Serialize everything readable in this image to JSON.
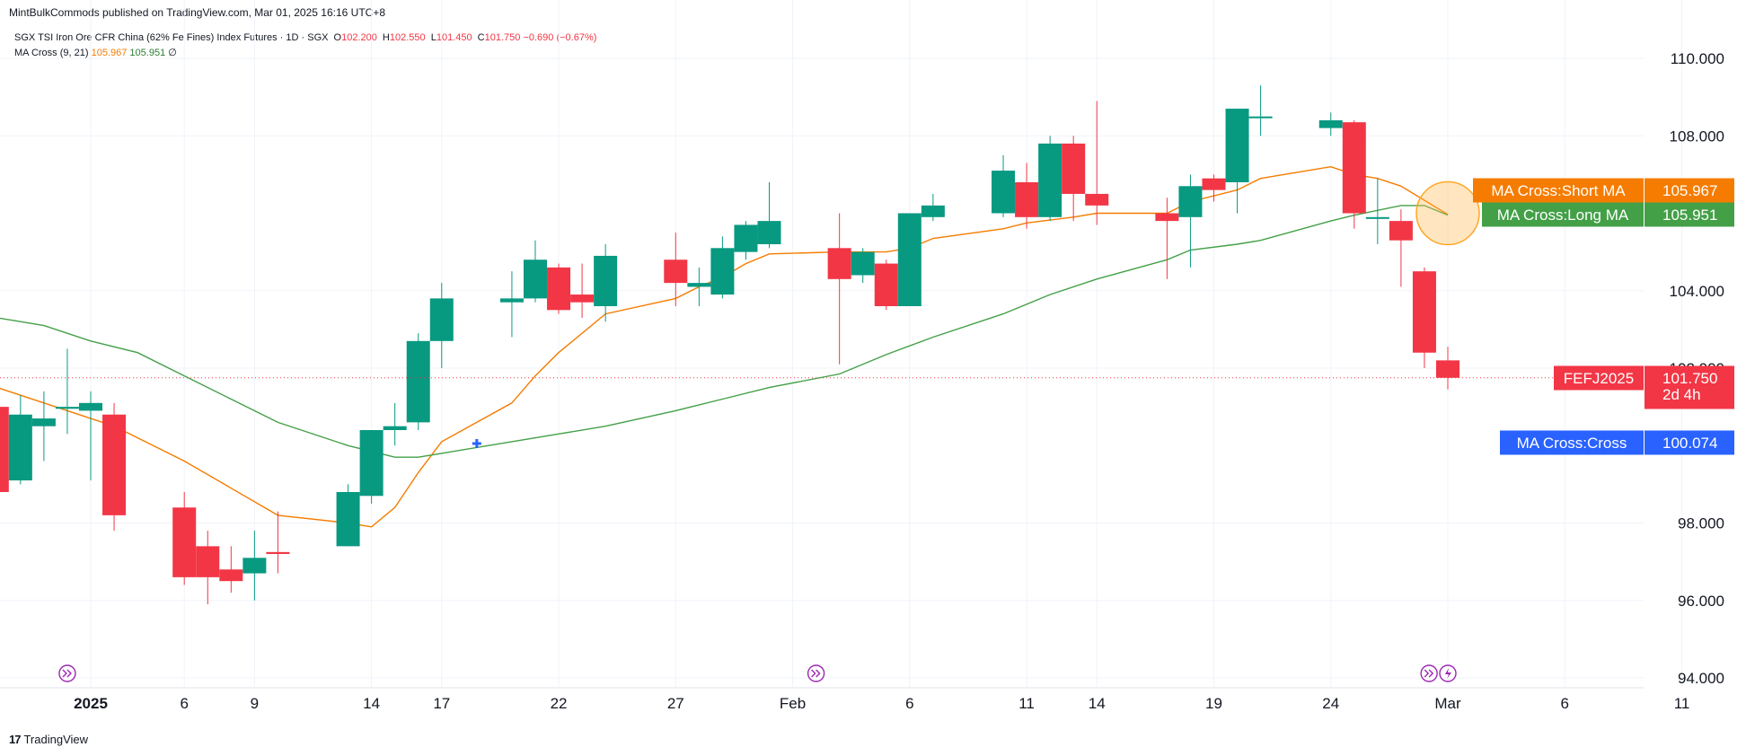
{
  "publisher_line": "MintBulkCommods published on TradingView.com, Mar 01, 2025 16:16 UTC+8",
  "legend": {
    "symbol": "SGX TSI Iron Ore CFR China (62% Fe Fines) Index Futures · 1D · SGX",
    "o_key": "O",
    "o_val": "102.200",
    "h_key": "H",
    "h_val": "102.550",
    "l_key": "L",
    "l_val": "101.450",
    "c_key": "C",
    "c_val": "101.750",
    "change": "−0.690 (−0.67%)",
    "indicator": "MA Cross (9, 21)",
    "short_val": "105.967",
    "long_val": "105.951",
    "empty_mark": "∅"
  },
  "footer": {
    "brand_mark": "17",
    "brand": "TradingView"
  },
  "colors": {
    "up": "#089981",
    "down": "#f23645",
    "short_ma": "#f57c00",
    "long_ma": "#43a047",
    "cross": "#2962ff",
    "grid": "#f0f3fa",
    "text": "#131722"
  },
  "chart_data": {
    "type": "candlestick",
    "symbol": "FEFJ2025",
    "ylim": [
      93.5,
      111.2
    ],
    "y_ticks": [
      "110.000",
      "108.000",
      "104.000",
      "102.000",
      "98.000",
      "96.000",
      "94.000"
    ],
    "y_tick_values": [
      110,
      108,
      104,
      102,
      98,
      96,
      94
    ],
    "x_ticks": [
      {
        "label": "2025",
        "day": 2,
        "bold": true
      },
      {
        "label": "6",
        "day": 6
      },
      {
        "label": "9",
        "day": 9
      },
      {
        "label": "14",
        "day": 14
      },
      {
        "label": "17",
        "day": 17
      },
      {
        "label": "22",
        "day": 22
      },
      {
        "label": "27",
        "day": 27
      },
      {
        "label": "Feb",
        "day": 32
      },
      {
        "label": "6",
        "day": 37
      },
      {
        "label": "11",
        "day": 42
      },
      {
        "label": "14",
        "day": 45
      },
      {
        "label": "19",
        "day": 50
      },
      {
        "label": "24",
        "day": 55
      },
      {
        "label": "Mar",
        "day": 60
      },
      {
        "label": "6",
        "day": 65
      },
      {
        "label": "11",
        "day": 70
      }
    ],
    "day_axis": "day 1 = Jan 1, 2025",
    "candles": [
      {
        "day": -2,
        "o": 101.0,
        "h": 101.3,
        "l": 98.6,
        "c": 98.8
      },
      {
        "day": -1,
        "o": 99.1,
        "h": 101.3,
        "l": 99.0,
        "c": 100.8
      },
      {
        "day": 0,
        "o": 100.5,
        "h": 101.4,
        "l": 99.6,
        "c": 100.7
      },
      {
        "day": 1,
        "o": 100.95,
        "h": 102.5,
        "l": 100.3,
        "c": 101.0
      },
      {
        "day": 2,
        "o": 100.9,
        "h": 101.4,
        "l": 99.1,
        "c": 101.1
      },
      {
        "day": 3,
        "o": 100.8,
        "h": 101.1,
        "l": 97.8,
        "c": 98.2
      },
      {
        "day": 6,
        "o": 98.4,
        "h": 98.8,
        "l": 96.4,
        "c": 96.6
      },
      {
        "day": 7,
        "o": 97.4,
        "h": 97.8,
        "l": 95.9,
        "c": 96.6
      },
      {
        "day": 8,
        "o": 96.8,
        "h": 97.4,
        "l": 96.2,
        "c": 96.5
      },
      {
        "day": 9,
        "o": 96.7,
        "h": 97.8,
        "l": 96.0,
        "c": 97.1
      },
      {
        "day": 10,
        "o": 97.25,
        "h": 98.3,
        "l": 96.7,
        "c": 97.2
      },
      {
        "day": 13,
        "o": 97.4,
        "h": 99.0,
        "l": 97.4,
        "c": 98.8
      },
      {
        "day": 14,
        "o": 98.7,
        "h": 100.4,
        "l": 98.5,
        "c": 100.4
      },
      {
        "day": 15,
        "o": 100.4,
        "h": 101.1,
        "l": 100.0,
        "c": 100.5
      },
      {
        "day": 16,
        "o": 100.6,
        "h": 102.9,
        "l": 100.4,
        "c": 102.7
      },
      {
        "day": 17,
        "o": 102.7,
        "h": 104.2,
        "l": 102.0,
        "c": 103.8
      },
      {
        "day": 20,
        "o": 103.7,
        "h": 104.5,
        "l": 102.8,
        "c": 103.8
      },
      {
        "day": 21,
        "o": 103.8,
        "h": 105.3,
        "l": 103.7,
        "c": 104.8
      },
      {
        "day": 22,
        "o": 104.6,
        "h": 104.7,
        "l": 103.4,
        "c": 103.5
      },
      {
        "day": 23,
        "o": 103.9,
        "h": 104.7,
        "l": 103.3,
        "c": 103.7
      },
      {
        "day": 24,
        "o": 103.6,
        "h": 105.2,
        "l": 103.2,
        "c": 104.9
      },
      {
        "day": 27,
        "o": 104.8,
        "h": 105.5,
        "l": 103.6,
        "c": 104.2
      },
      {
        "day": 28,
        "o": 104.1,
        "h": 104.6,
        "l": 103.6,
        "c": 104.2
      },
      {
        "day": 29,
        "o": 103.9,
        "h": 105.4,
        "l": 103.8,
        "c": 105.1
      },
      {
        "day": 30,
        "o": 105.0,
        "h": 105.8,
        "l": 104.8,
        "c": 105.7
      },
      {
        "day": 31,
        "o": 105.2,
        "h": 106.8,
        "l": 105.1,
        "c": 105.8
      },
      {
        "day": 34,
        "o": 105.1,
        "h": 106.0,
        "l": 102.1,
        "c": 104.3
      },
      {
        "day": 35,
        "o": 104.4,
        "h": 105.1,
        "l": 104.2,
        "c": 105.0
      },
      {
        "day": 36,
        "o": 104.7,
        "h": 104.8,
        "l": 103.5,
        "c": 103.6
      },
      {
        "day": 37,
        "o": 103.6,
        "h": 106.0,
        "l": 103.6,
        "c": 106.0
      },
      {
        "day": 38,
        "o": 105.9,
        "h": 106.5,
        "l": 105.8,
        "c": 106.2
      },
      {
        "day": 41,
        "o": 106.0,
        "h": 107.5,
        "l": 105.9,
        "c": 107.1
      },
      {
        "day": 42,
        "o": 106.8,
        "h": 107.3,
        "l": 105.6,
        "c": 105.9
      },
      {
        "day": 43,
        "o": 105.9,
        "h": 108.0,
        "l": 105.8,
        "c": 107.8
      },
      {
        "day": 44,
        "o": 107.8,
        "h": 108.0,
        "l": 105.8,
        "c": 106.5
      },
      {
        "day": 45,
        "o": 106.5,
        "h": 108.9,
        "l": 105.7,
        "c": 106.2
      },
      {
        "day": 48,
        "o": 106.0,
        "h": 106.4,
        "l": 104.3,
        "c": 105.8
      },
      {
        "day": 49,
        "o": 105.9,
        "h": 107.0,
        "l": 104.6,
        "c": 106.7
      },
      {
        "day": 50,
        "o": 106.9,
        "h": 107.0,
        "l": 106.3,
        "c": 106.6
      },
      {
        "day": 51,
        "o": 106.8,
        "h": 108.7,
        "l": 106.0,
        "c": 108.7
      },
      {
        "day": 52,
        "o": 108.5,
        "h": 109.3,
        "l": 108.0,
        "c": 108.5
      },
      {
        "day": 55,
        "o": 108.2,
        "h": 108.6,
        "l": 108.0,
        "c": 108.4
      },
      {
        "day": 56,
        "o": 108.35,
        "h": 108.4,
        "l": 105.6,
        "c": 106.0
      },
      {
        "day": 57,
        "o": 105.9,
        "h": 106.9,
        "l": 105.2,
        "c": 105.9
      },
      {
        "day": 58,
        "o": 105.8,
        "h": 106.1,
        "l": 104.1,
        "c": 105.3
      },
      {
        "day": 59,
        "o": 104.5,
        "h": 104.6,
        "l": 102.0,
        "c": 102.4
      },
      {
        "day": 60,
        "o": 102.2,
        "h": 102.55,
        "l": 101.45,
        "c": 101.75
      }
    ],
    "series": [
      {
        "name": "MA Cross:Short MA",
        "color": "#f57c00",
        "points": [
          [
            -2,
            101.5
          ],
          [
            0,
            101.1
          ],
          [
            3,
            100.5
          ],
          [
            6,
            99.6
          ],
          [
            8,
            98.9
          ],
          [
            10,
            98.2
          ],
          [
            13,
            98.0
          ],
          [
            14,
            97.9
          ],
          [
            15,
            98.4
          ],
          [
            16,
            99.3
          ],
          [
            17,
            100.1
          ],
          [
            20,
            101.1
          ],
          [
            21,
            101.8
          ],
          [
            22,
            102.4
          ],
          [
            23,
            102.9
          ],
          [
            24,
            103.4
          ],
          [
            27,
            103.8
          ],
          [
            28,
            104.1
          ],
          [
            29,
            104.35
          ],
          [
            30,
            104.7
          ],
          [
            31,
            104.95
          ],
          [
            34,
            105.0
          ],
          [
            36,
            105.0
          ],
          [
            37,
            105.1
          ],
          [
            38,
            105.35
          ],
          [
            41,
            105.6
          ],
          [
            42,
            105.75
          ],
          [
            44,
            105.9
          ],
          [
            45,
            106.0
          ],
          [
            48,
            106.0
          ],
          [
            49,
            106.3
          ],
          [
            51,
            106.6
          ],
          [
            52,
            106.9
          ],
          [
            55,
            107.2
          ],
          [
            56,
            107.0
          ],
          [
            57,
            106.9
          ],
          [
            58,
            106.7
          ],
          [
            60,
            105.967
          ]
        ]
      },
      {
        "name": "MA Cross:Long MA",
        "color": "#43a047",
        "points": [
          [
            -2,
            103.3
          ],
          [
            0,
            103.1
          ],
          [
            2,
            102.7
          ],
          [
            4,
            102.4
          ],
          [
            6,
            101.8
          ],
          [
            8,
            101.2
          ],
          [
            10,
            100.6
          ],
          [
            13,
            100.0
          ],
          [
            15,
            99.7
          ],
          [
            16,
            99.7
          ],
          [
            17,
            99.8
          ],
          [
            20,
            100.1
          ],
          [
            22,
            100.3
          ],
          [
            24,
            100.5
          ],
          [
            27,
            100.9
          ],
          [
            29,
            101.2
          ],
          [
            31,
            101.5
          ],
          [
            34,
            101.85
          ],
          [
            36,
            102.35
          ],
          [
            38,
            102.8
          ],
          [
            41,
            103.4
          ],
          [
            43,
            103.9
          ],
          [
            45,
            104.3
          ],
          [
            48,
            104.8
          ],
          [
            49,
            105.05
          ],
          [
            51,
            105.2
          ],
          [
            52,
            105.3
          ],
          [
            55,
            105.8
          ],
          [
            56,
            105.95
          ],
          [
            58,
            106.2
          ],
          [
            59,
            106.2
          ],
          [
            60,
            105.951
          ]
        ]
      }
    ],
    "cross_point": {
      "day": 18.5,
      "value": 100.074
    },
    "event_markers": [
      {
        "day": 1,
        "type": "dividend"
      },
      {
        "day": 33,
        "type": "dividend"
      },
      {
        "day": 59.2,
        "type": "dividend"
      },
      {
        "day": 60,
        "type": "split"
      }
    ],
    "price_labels": [
      {
        "name": "MA Cross:Short MA",
        "value": "105.967",
        "color": "#f57c00"
      },
      {
        "name": "MA Cross:Long MA",
        "value": "105.951",
        "color": "#43a047"
      },
      {
        "name": "FEFJ2025",
        "value": "101.750",
        "sub": "2d 4h",
        "color": "#f23645"
      },
      {
        "name": "MA Cross:Cross",
        "value": "100.074",
        "color": "#2962ff"
      }
    ],
    "highlight": {
      "day": 60,
      "value": 106.0,
      "note": "circle around MA crossover"
    }
  }
}
